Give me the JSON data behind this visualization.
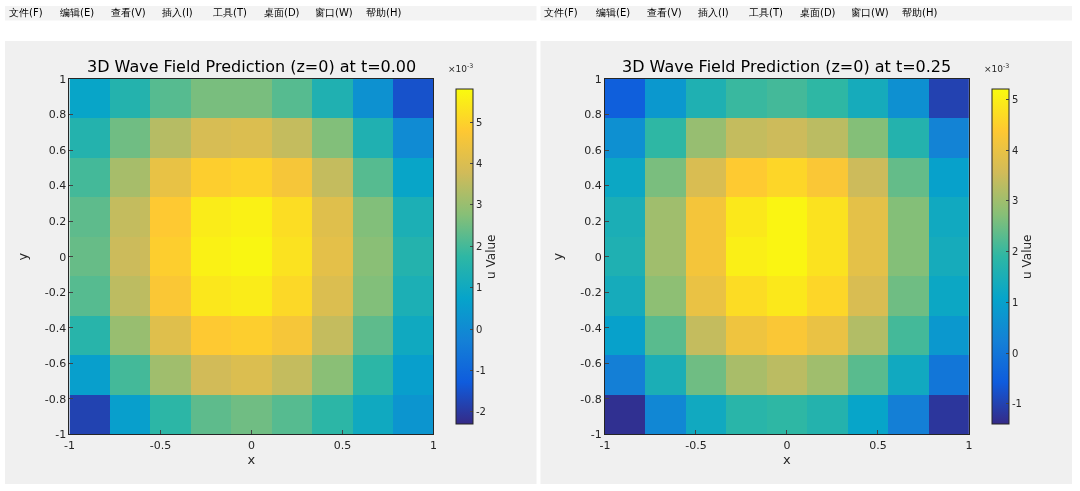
{
  "chart_data": [
    {
      "type": "heatmap",
      "title": "3D Wave Field Prediction (z=0) at t=0.00",
      "xlabel": "x",
      "ylabel": "y",
      "clabel": "u Value",
      "annotations": [
        "文件(F)",
        "编辑(E)",
        "查看(V)",
        "插入(I)",
        "工具(T)",
        "桌面(D)",
        "窗口(W)",
        "帮助(H)",
        "×10$^{-3}$"
      ],
      "x": [
        -0.889,
        -0.667,
        -0.444,
        -0.222,
        0,
        0.222,
        0.444,
        0.667,
        0.889
      ],
      "y": [
        0.889,
        0.667,
        0.444,
        0.222,
        0,
        -0.222,
        -0.444,
        -0.667,
        -0.889
      ],
      "cells": [
        [
          0.8,
          1.5,
          2.2,
          2.6,
          2.6,
          2.2,
          1.4,
          0.2,
          -1.5
        ],
        [
          1.5,
          2.5,
          3.4,
          3.9,
          4.0,
          3.6,
          2.7,
          1.4,
          0.0
        ],
        [
          2.0,
          3.2,
          4.3,
          4.9,
          5.0,
          4.6,
          3.6,
          2.2,
          0.8
        ],
        [
          2.3,
          3.6,
          4.8,
          5.5,
          5.6,
          5.2,
          4.1,
          2.7,
          1.3
        ],
        [
          2.4,
          3.7,
          4.9,
          5.6,
          5.7,
          5.3,
          4.2,
          2.8,
          1.5
        ],
        [
          2.2,
          3.5,
          4.7,
          5.4,
          5.5,
          5.1,
          4.0,
          2.7,
          1.3
        ],
        [
          1.6,
          3.0,
          4.1,
          4.8,
          4.9,
          4.6,
          3.6,
          2.3,
          1.0
        ],
        [
          0.6,
          2.0,
          3.1,
          3.8,
          4.0,
          3.6,
          2.8,
          1.7,
          0.6
        ],
        [
          -1.8,
          0.6,
          1.7,
          2.3,
          2.5,
          2.2,
          1.7,
          1.0,
          0.3
        ]
      ],
      "xlim": [
        -1,
        1
      ],
      "ylim": [
        -1,
        1
      ],
      "xticks": [
        -1,
        -0.5,
        0,
        0.5,
        1
      ],
      "yticks": [
        -1,
        -0.8,
        -0.6,
        -0.4,
        -0.2,
        0,
        0.2,
        0.4,
        0.6,
        0.8,
        1
      ],
      "clim": [
        -2.3,
        5.8
      ],
      "cticks": [
        -2,
        -1,
        0,
        1,
        2,
        3,
        4,
        5
      ]
    },
    {
      "type": "heatmap",
      "title": "3D Wave Field Prediction (z=0) at t=0.25",
      "xlabel": "x",
      "ylabel": "y",
      "clabel": "u Value",
      "annotations": [
        "文件(F)",
        "编辑(E)",
        "查看(V)",
        "插入(I)",
        "工具(T)",
        "桌面(D)",
        "窗口(W)",
        "帮助(H)",
        "×10$^{-3}$"
      ],
      "x": [
        -0.889,
        -0.667,
        -0.444,
        -0.222,
        0,
        0.222,
        0.444,
        0.667,
        0.889
      ],
      "y": [
        0.889,
        0.667,
        0.444,
        0.222,
        0,
        -0.222,
        -0.444,
        -0.667,
        -0.889
      ],
      "cells": [
        [
          -0.5,
          0.8,
          1.6,
          2.0,
          2.1,
          1.9,
          1.4,
          0.6,
          -1.0
        ],
        [
          0.6,
          1.9,
          2.9,
          3.4,
          3.5,
          3.3,
          2.7,
          1.7,
          0.3
        ],
        [
          1.2,
          2.6,
          3.7,
          4.4,
          4.6,
          4.3,
          3.5,
          2.4,
          1.0
        ],
        [
          1.5,
          3.0,
          4.2,
          4.9,
          5.1,
          4.8,
          3.9,
          2.7,
          1.3
        ],
        [
          1.6,
          3.0,
          4.2,
          5.0,
          5.1,
          4.8,
          3.9,
          2.7,
          1.4
        ],
        [
          1.4,
          2.8,
          4.0,
          4.7,
          4.9,
          4.6,
          3.7,
          2.5,
          1.2
        ],
        [
          1.0,
          2.3,
          3.4,
          4.1,
          4.3,
          4.0,
          3.2,
          2.1,
          0.8
        ],
        [
          0.2,
          1.5,
          2.5,
          3.1,
          3.3,
          3.0,
          2.3,
          1.3,
          0.0
        ],
        [
          -1.3,
          0.4,
          1.3,
          1.8,
          1.9,
          1.7,
          1.1,
          0.2,
          -1.2
        ]
      ],
      "xlim": [
        -1,
        1
      ],
      "ylim": [
        -1,
        1
      ],
      "xticks": [
        -1,
        -0.5,
        0,
        0.5,
        1
      ],
      "yticks": [
        -1,
        -0.8,
        -0.6,
        -0.4,
        -0.2,
        0,
        0.2,
        0.4,
        0.6,
        0.8,
        1
      ],
      "clim": [
        -1.4,
        5.2
      ],
      "cticks": [
        -1,
        0,
        1,
        2,
        3,
        4,
        5
      ]
    }
  ]
}
